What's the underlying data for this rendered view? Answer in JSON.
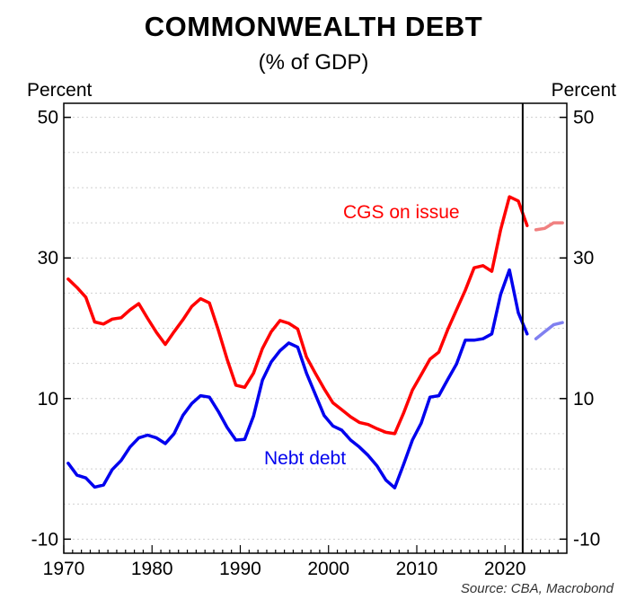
{
  "chart_data": {
    "type": "line",
    "title": "COMMONWEALTH DEBT",
    "subtitle": "(% of GDP)",
    "ylabel_left": "Percent",
    "ylabel_right": "Percent",
    "source": "Source: CBA, Macrobond",
    "xlim": [
      1970,
      2027
    ],
    "ylim": [
      -12,
      52
    ],
    "x_ticks": [
      1970,
      1980,
      1990,
      2000,
      2010,
      2020
    ],
    "y_ticks": [
      -10,
      10,
      30,
      50
    ],
    "grid": true,
    "vertical_marker_x": 2022,
    "series": [
      {
        "name": "CGS on issue",
        "color": "#ff0000",
        "projection_color": "#f08080",
        "projection_start": 2023,
        "x": [
          1970.5,
          1971.5,
          1972.5,
          1973.5,
          1974.5,
          1975.5,
          1976.5,
          1977.5,
          1978.5,
          1979.5,
          1980.5,
          1981.5,
          1982.5,
          1983.5,
          1984.5,
          1985.5,
          1986.5,
          1987.5,
          1988.5,
          1989.5,
          1990.5,
          1991.5,
          1992.5,
          1993.5,
          1994.5,
          1995.5,
          1996.5,
          1997.5,
          1998.5,
          1999.5,
          2000.5,
          2001.5,
          2002.5,
          2003.5,
          2004.5,
          2005.5,
          2006.5,
          2007.5,
          2008.5,
          2009.5,
          2010.5,
          2011.5,
          2012.5,
          2013.5,
          2014.5,
          2015.5,
          2016.5,
          2017.5,
          2018.5,
          2019.5,
          2020.5,
          2021.5,
          2022.5,
          2023.5,
          2024.5,
          2025.5,
          2026.5
        ],
        "values": [
          27,
          25.8,
          24.4,
          20.9,
          20.6,
          21.3,
          21.5,
          22.6,
          23.5,
          21.4,
          19.4,
          17.7,
          19.5,
          21.2,
          23.1,
          24.2,
          23.6,
          19.8,
          15.6,
          11.9,
          11.6,
          13.6,
          17.1,
          19.5,
          21.1,
          20.7,
          19.9,
          15.9,
          13.6,
          11.4,
          9.4,
          8.4,
          7.4,
          6.6,
          6.3,
          5.7,
          5.2,
          5.0,
          7.9,
          11.2,
          13.4,
          15.6,
          16.6,
          19.8,
          22.6,
          25.4,
          28.6,
          28.9,
          28.1,
          34,
          38.7,
          38.1,
          34.6,
          34,
          34.2,
          35,
          35
        ]
      },
      {
        "name": "Nebt debt",
        "color": "#0000ee",
        "projection_color": "#8080f0",
        "projection_start": 2023,
        "x": [
          1970.5,
          1971.5,
          1972.5,
          1973.5,
          1974.5,
          1975.5,
          1976.5,
          1977.5,
          1978.5,
          1979.5,
          1980.5,
          1981.5,
          1982.5,
          1983.5,
          1984.5,
          1985.5,
          1986.5,
          1987.5,
          1988.5,
          1989.5,
          1990.5,
          1991.5,
          1992.5,
          1993.5,
          1994.5,
          1995.5,
          1996.5,
          1997.5,
          1998.5,
          1999.5,
          2000.5,
          2001.5,
          2002.5,
          2003.5,
          2004.5,
          2005.5,
          2006.5,
          2007.5,
          2008.5,
          2009.5,
          2010.5,
          2011.5,
          2012.5,
          2013.5,
          2014.5,
          2015.5,
          2016.5,
          2017.5,
          2018.5,
          2019.5,
          2020.5,
          2021.5,
          2022.5,
          2023.5,
          2024.5,
          2025.5,
          2026.5
        ],
        "values": [
          0.8,
          -0.9,
          -1.3,
          -2.6,
          -2.3,
          -0.1,
          1.2,
          3.1,
          4.4,
          4.8,
          4.4,
          3.6,
          5.0,
          7.6,
          9.3,
          10.4,
          10.2,
          8.2,
          5.9,
          4.1,
          4.2,
          7.5,
          12.6,
          15.2,
          16.8,
          17.9,
          17.3,
          13.6,
          10.6,
          7.6,
          6.1,
          5.5,
          4.1,
          3.1,
          1.9,
          0.4,
          -1.6,
          -2.7,
          0.6,
          4.1,
          6.5,
          10.2,
          10.4,
          12.7,
          14.9,
          18.3,
          18.3,
          18.5,
          19.2,
          24.8,
          28.3,
          22.2,
          19.2,
          18.5,
          19.5,
          20.5,
          20.8
        ]
      }
    ]
  }
}
